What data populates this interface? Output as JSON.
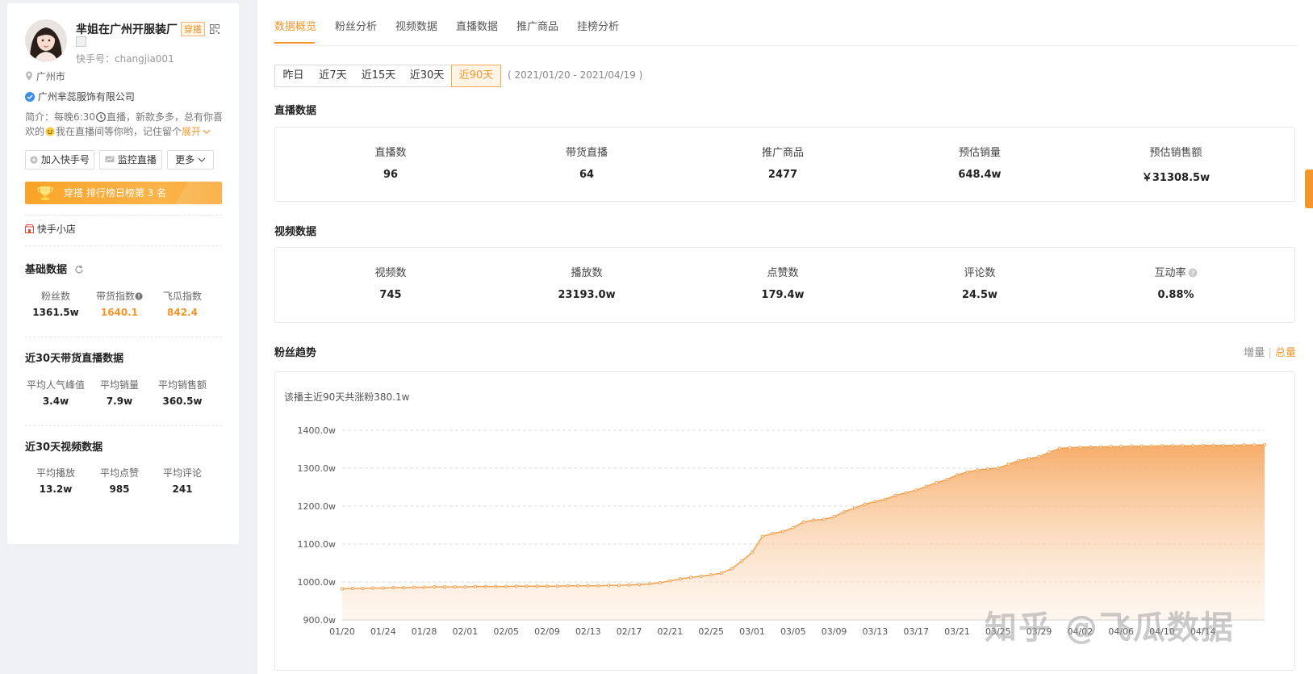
{
  "profile": {
    "name": "芈姐在广州开服装厂",
    "category": "穿搭",
    "kuaishou_id_label": "快手号：changjia001",
    "location": "广州市",
    "company": "广州芈蕊服饰有限公司",
    "bio_line1": "简介：每晚6:30",
    "bio_line1b": "直播，新款多多，总有你喜",
    "bio_line2a": "欢的",
    "bio_line2b": "我在直播间等你哟，记住留个",
    "expand": "展开"
  },
  "actions": {
    "add": "加入快手号",
    "monitor": "监控直播",
    "more": "更多"
  },
  "rank": {
    "text": "穿搭 排行榜日榜第 3 名"
  },
  "shop": "快手小店",
  "basic": {
    "title": "基础数据",
    "items": [
      {
        "label": "粉丝数",
        "value": "1361.5w"
      },
      {
        "label": "带货指数",
        "value": "1640.1"
      },
      {
        "label": "飞瓜指数",
        "value": "842.4"
      }
    ]
  },
  "live30": {
    "title": "近30天带货直播数据",
    "items": [
      {
        "label": "平均人气峰值",
        "value": "3.4w"
      },
      {
        "label": "平均销量",
        "value": "7.9w"
      },
      {
        "label": "平均销售额",
        "value": "360.5w"
      }
    ]
  },
  "video30": {
    "title": "近30天视频数据",
    "items": [
      {
        "label": "平均播放",
        "value": "13.2w"
      },
      {
        "label": "平均点赞",
        "value": "985"
      },
      {
        "label": "平均评论",
        "value": "241"
      }
    ]
  },
  "tabs": [
    "数据概览",
    "粉丝分析",
    "视频数据",
    "直播数据",
    "推广商品",
    "挂榜分析"
  ],
  "ranges": [
    "昨日",
    "近7天",
    "近15天",
    "近30天",
    "近90天"
  ],
  "range_text": "( 2021/01/20 - 2021/04/19 )",
  "live_block": {
    "title": "直播数据",
    "items": [
      {
        "label": "直播数",
        "value": "96"
      },
      {
        "label": "带货直播",
        "value": "64"
      },
      {
        "label": "推广商品",
        "value": "2477"
      },
      {
        "label": "预估销量",
        "value": "648.4w"
      },
      {
        "label": "预估销售额",
        "value": "￥31308.5w"
      }
    ]
  },
  "video_block": {
    "title": "视频数据",
    "items": [
      {
        "label": "视频数",
        "value": "745"
      },
      {
        "label": "播放数",
        "value": "23193.0w"
      },
      {
        "label": "点赞数",
        "value": "179.4w"
      },
      {
        "label": "评论数",
        "value": "24.5w"
      },
      {
        "label": "互动率",
        "value": "0.88%"
      }
    ]
  },
  "fans_trend": {
    "title": "粉丝趋势",
    "toggle_inc": "增量",
    "toggle_sep": "|",
    "toggle_total": "总量",
    "note": "该播主近90天共涨粉380.1w"
  },
  "watermark": "知乎 @飞瓜数据",
  "colors": {
    "accent": "#f5962a",
    "area": "#f8b87a"
  },
  "chart_data": {
    "type": "area",
    "xticks": [
      "01/20",
      "01/24",
      "01/28",
      "02/01",
      "02/05",
      "02/09",
      "02/13",
      "02/17",
      "02/21",
      "02/25",
      "03/01",
      "03/05",
      "03/09",
      "03/13",
      "03/17",
      "03/21",
      "03/25",
      "03/29",
      "04/02",
      "04/06",
      "04/10",
      "04/14"
    ],
    "yticks": [
      "900.0w",
      "1000.0w",
      "1100.0w",
      "1200.0w",
      "1300.0w",
      "1400.0w"
    ],
    "ylim": [
      900,
      1400
    ],
    "unit": "w",
    "values": [
      982,
      983,
      983,
      984,
      984,
      985,
      985,
      986,
      986,
      987,
      987,
      987,
      987,
      988,
      988,
      988,
      988,
      989,
      989,
      989,
      989,
      989,
      990,
      990,
      990,
      990,
      991,
      991,
      992,
      993,
      995,
      998,
      1003,
      1008,
      1012,
      1015,
      1019,
      1023,
      1035,
      1055,
      1078,
      1120,
      1128,
      1133,
      1143,
      1158,
      1163,
      1165,
      1172,
      1185,
      1195,
      1205,
      1212,
      1218,
      1228,
      1235,
      1242,
      1252,
      1262,
      1270,
      1282,
      1290,
      1295,
      1298,
      1300,
      1310,
      1320,
      1325,
      1330,
      1342,
      1352,
      1354,
      1355,
      1356,
      1356,
      1357,
      1357,
      1358,
      1358,
      1358,
      1359,
      1359,
      1359,
      1359,
      1360,
      1360,
      1360,
      1360,
      1361,
      1361,
      1361.5
    ]
  }
}
